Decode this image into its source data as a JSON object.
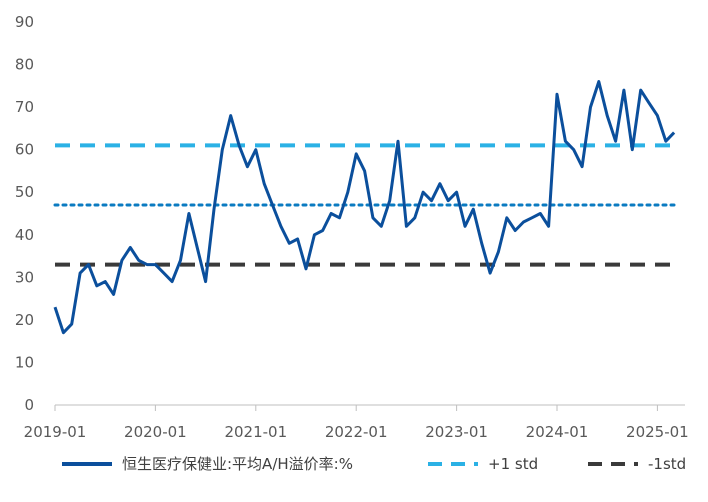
{
  "chart_data": {
    "type": "line",
    "title": "",
    "xlabel": "",
    "ylabel": "",
    "ylim": [
      0,
      90
    ],
    "y_ticks": [
      "0",
      "10",
      "20",
      "30",
      "40",
      "50",
      "60",
      "70",
      "80",
      "90"
    ],
    "x_ticks": [
      "2019-01",
      "2020-01",
      "2021-01",
      "2022-01",
      "2023-01",
      "2024-01",
      "2025-01"
    ],
    "x_range": [
      "2019-01",
      "2025-03"
    ],
    "grid": false,
    "legend_position": "bottom",
    "series": [
      {
        "name": "恒生医疗保健业:平均A/H溢价率:%",
        "color": "#0B4F9C",
        "style": "solid",
        "x": [
          "2019-01",
          "2019-02",
          "2019-03",
          "2019-04",
          "2019-05",
          "2019-06",
          "2019-07",
          "2019-08",
          "2019-09",
          "2019-10",
          "2019-11",
          "2019-12",
          "2020-01",
          "2020-02",
          "2020-03",
          "2020-04",
          "2020-05",
          "2020-06",
          "2020-07",
          "2020-08",
          "2020-09",
          "2020-10",
          "2020-11",
          "2020-12",
          "2021-01",
          "2021-02",
          "2021-03",
          "2021-04",
          "2021-05",
          "2021-06",
          "2021-07",
          "2021-08",
          "2021-09",
          "2021-10",
          "2021-11",
          "2021-12",
          "2022-01",
          "2022-02",
          "2022-03",
          "2022-04",
          "2022-05",
          "2022-06",
          "2022-07",
          "2022-08",
          "2022-09",
          "2022-10",
          "2022-11",
          "2022-12",
          "2023-01",
          "2023-02",
          "2023-03",
          "2023-04",
          "2023-05",
          "2023-06",
          "2023-07",
          "2023-08",
          "2023-09",
          "2023-10",
          "2023-11",
          "2023-12",
          "2024-01",
          "2024-02",
          "2024-03",
          "2024-04",
          "2024-05",
          "2024-06",
          "2024-07",
          "2024-08",
          "2024-09",
          "2024-10",
          "2024-11",
          "2024-12",
          "2025-01",
          "2025-02",
          "2025-03"
        ],
        "values": [
          23,
          17,
          19,
          31,
          33,
          28,
          29,
          26,
          34,
          37,
          34,
          33,
          33,
          31,
          29,
          34,
          45,
          37,
          29,
          46,
          60,
          68,
          61,
          56,
          60,
          52,
          47,
          42,
          38,
          39,
          32,
          40,
          41,
          45,
          44,
          50,
          59,
          55,
          44,
          42,
          48,
          62,
          42,
          44,
          50,
          48,
          52,
          48,
          50,
          42,
          46,
          38,
          31,
          36,
          44,
          41,
          43,
          44,
          45,
          42,
          73,
          62,
          60,
          56,
          70,
          76,
          68,
          62,
          74,
          60,
          74,
          71,
          68,
          62,
          64
        ]
      },
      {
        "name": "",
        "color": "#0B7BC1",
        "style": "dotted",
        "constant": 47
      },
      {
        "name": "+1 std",
        "color": "#2BB1E5",
        "style": "dashed",
        "constant": 61
      },
      {
        "name": "-1std",
        "color": "#3A3A3A",
        "style": "dashed",
        "constant": 33
      }
    ]
  }
}
